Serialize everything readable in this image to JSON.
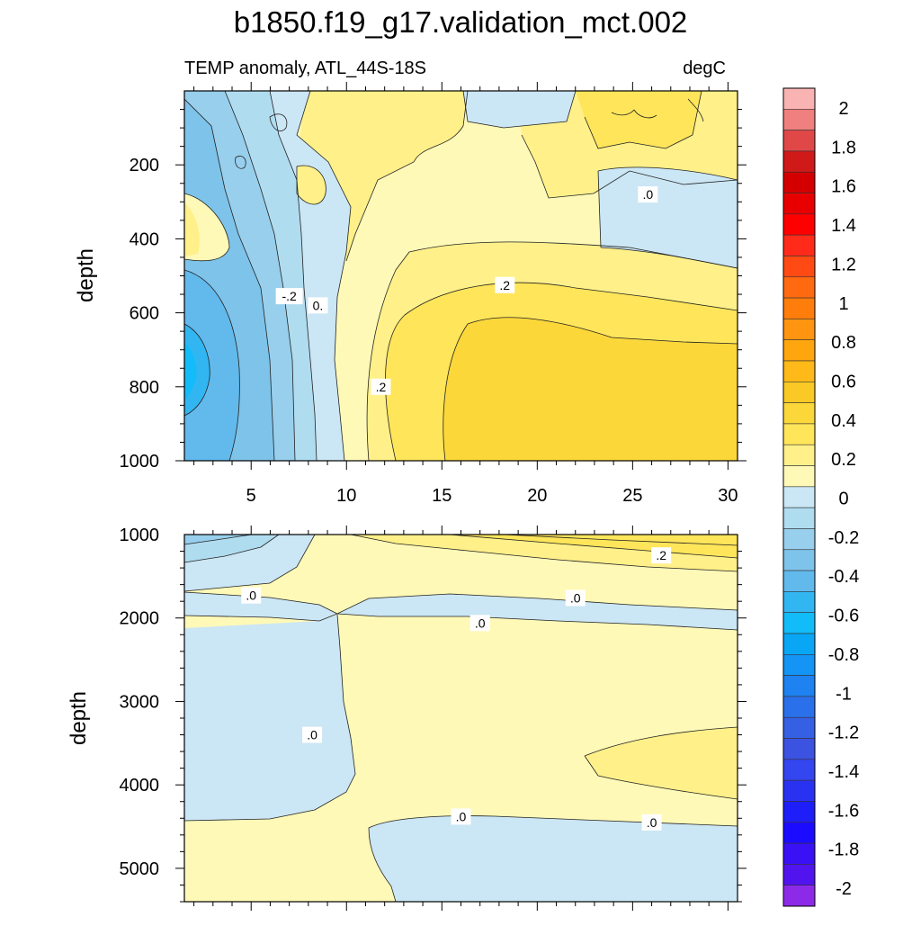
{
  "title": "b1850.f19_g17.validation_mct.002",
  "subtitle_left": "TEMP anomaly, ATL_44S-18S",
  "subtitle_right": "degC",
  "chart_data": [
    {
      "type": "heatmap",
      "panel": "upper",
      "ylabel": "depth",
      "x_ticks": [
        "5",
        "10",
        "15",
        "20",
        "25",
        "30"
      ],
      "x_tick_values": [
        5,
        10,
        15,
        20,
        25,
        30
      ],
      "y_ticks": [
        "200",
        "400",
        "600",
        "800",
        "1000"
      ],
      "y_tick_values": [
        200,
        400,
        600,
        800,
        1000
      ],
      "xlim": [
        1.5,
        30.5
      ],
      "ylim": [
        1000,
        0
      ],
      "contour_labels": [
        {
          "text": "-.2",
          "x": 7.0,
          "y": 555
        },
        {
          "text": "0.",
          "x": 8.5,
          "y": 580
        },
        {
          "text": ".2",
          "x": 18.3,
          "y": 525
        },
        {
          "text": ".2",
          "x": 11.8,
          "y": 800
        },
        {
          "text": ".0",
          "x": 25.8,
          "y": 280
        }
      ]
    },
    {
      "type": "heatmap",
      "panel": "lower",
      "ylabel": "depth",
      "y_ticks": [
        "1000",
        "2000",
        "3000",
        "4000",
        "5000"
      ],
      "y_tick_values": [
        1000,
        2000,
        3000,
        4000,
        5000
      ],
      "xlim": [
        1.5,
        30.5
      ],
      "ylim": [
        5400,
        1000
      ],
      "contour_labels": [
        {
          "text": ".2",
          "x": 26.5,
          "y": 1250
        },
        {
          "text": ".0",
          "x": 5.0,
          "y": 1730
        },
        {
          "text": ".0",
          "x": 22.0,
          "y": 1760
        },
        {
          "text": ".0",
          "x": 17.0,
          "y": 2060
        },
        {
          "text": ".0",
          "x": 8.2,
          "y": 3400
        },
        {
          "text": ".0",
          "x": 16.0,
          "y": 4380
        },
        {
          "text": ".0",
          "x": 26.0,
          "y": 4450
        }
      ]
    }
  ],
  "colorbar": {
    "labels": [
      "2",
      "1.8",
      "1.6",
      "1.4",
      "1.2",
      "1",
      "0.8",
      "0.6",
      "0.4",
      "0.2",
      "0",
      "-0.2",
      "-0.4",
      "-0.6",
      "-0.8",
      "-1",
      "-1.2",
      "-1.4",
      "-1.6",
      "-1.8",
      "-2"
    ],
    "colors": [
      "#f9b3b3",
      "#f07f7f",
      "#e04848",
      "#d01a1a",
      "#d40000",
      "#e80000",
      "#ff0000",
      "#ff2a1a",
      "#ff4a14",
      "#ff6a10",
      "#ff7d0a",
      "#ff9410",
      "#ffa60f",
      "#ffb918",
      "#fbc926",
      "#fcd73a",
      "#ffe55a",
      "#fff089",
      "#fff9b8",
      "#cbe6f4",
      "#b0dcf0",
      "#98cfed",
      "#7ec3ea",
      "#62b9ec",
      "#32b6f2",
      "#12bcf8",
      "#08a6f5",
      "#1494f4",
      "#1e82f0",
      "#2a70ea",
      "#3660e4",
      "#3c52e0",
      "#3446f0",
      "#2a32f2",
      "#1e1ef8",
      "#1c0cff",
      "#3a10f4",
      "#5214ee",
      "#8c2ae8"
    ]
  }
}
